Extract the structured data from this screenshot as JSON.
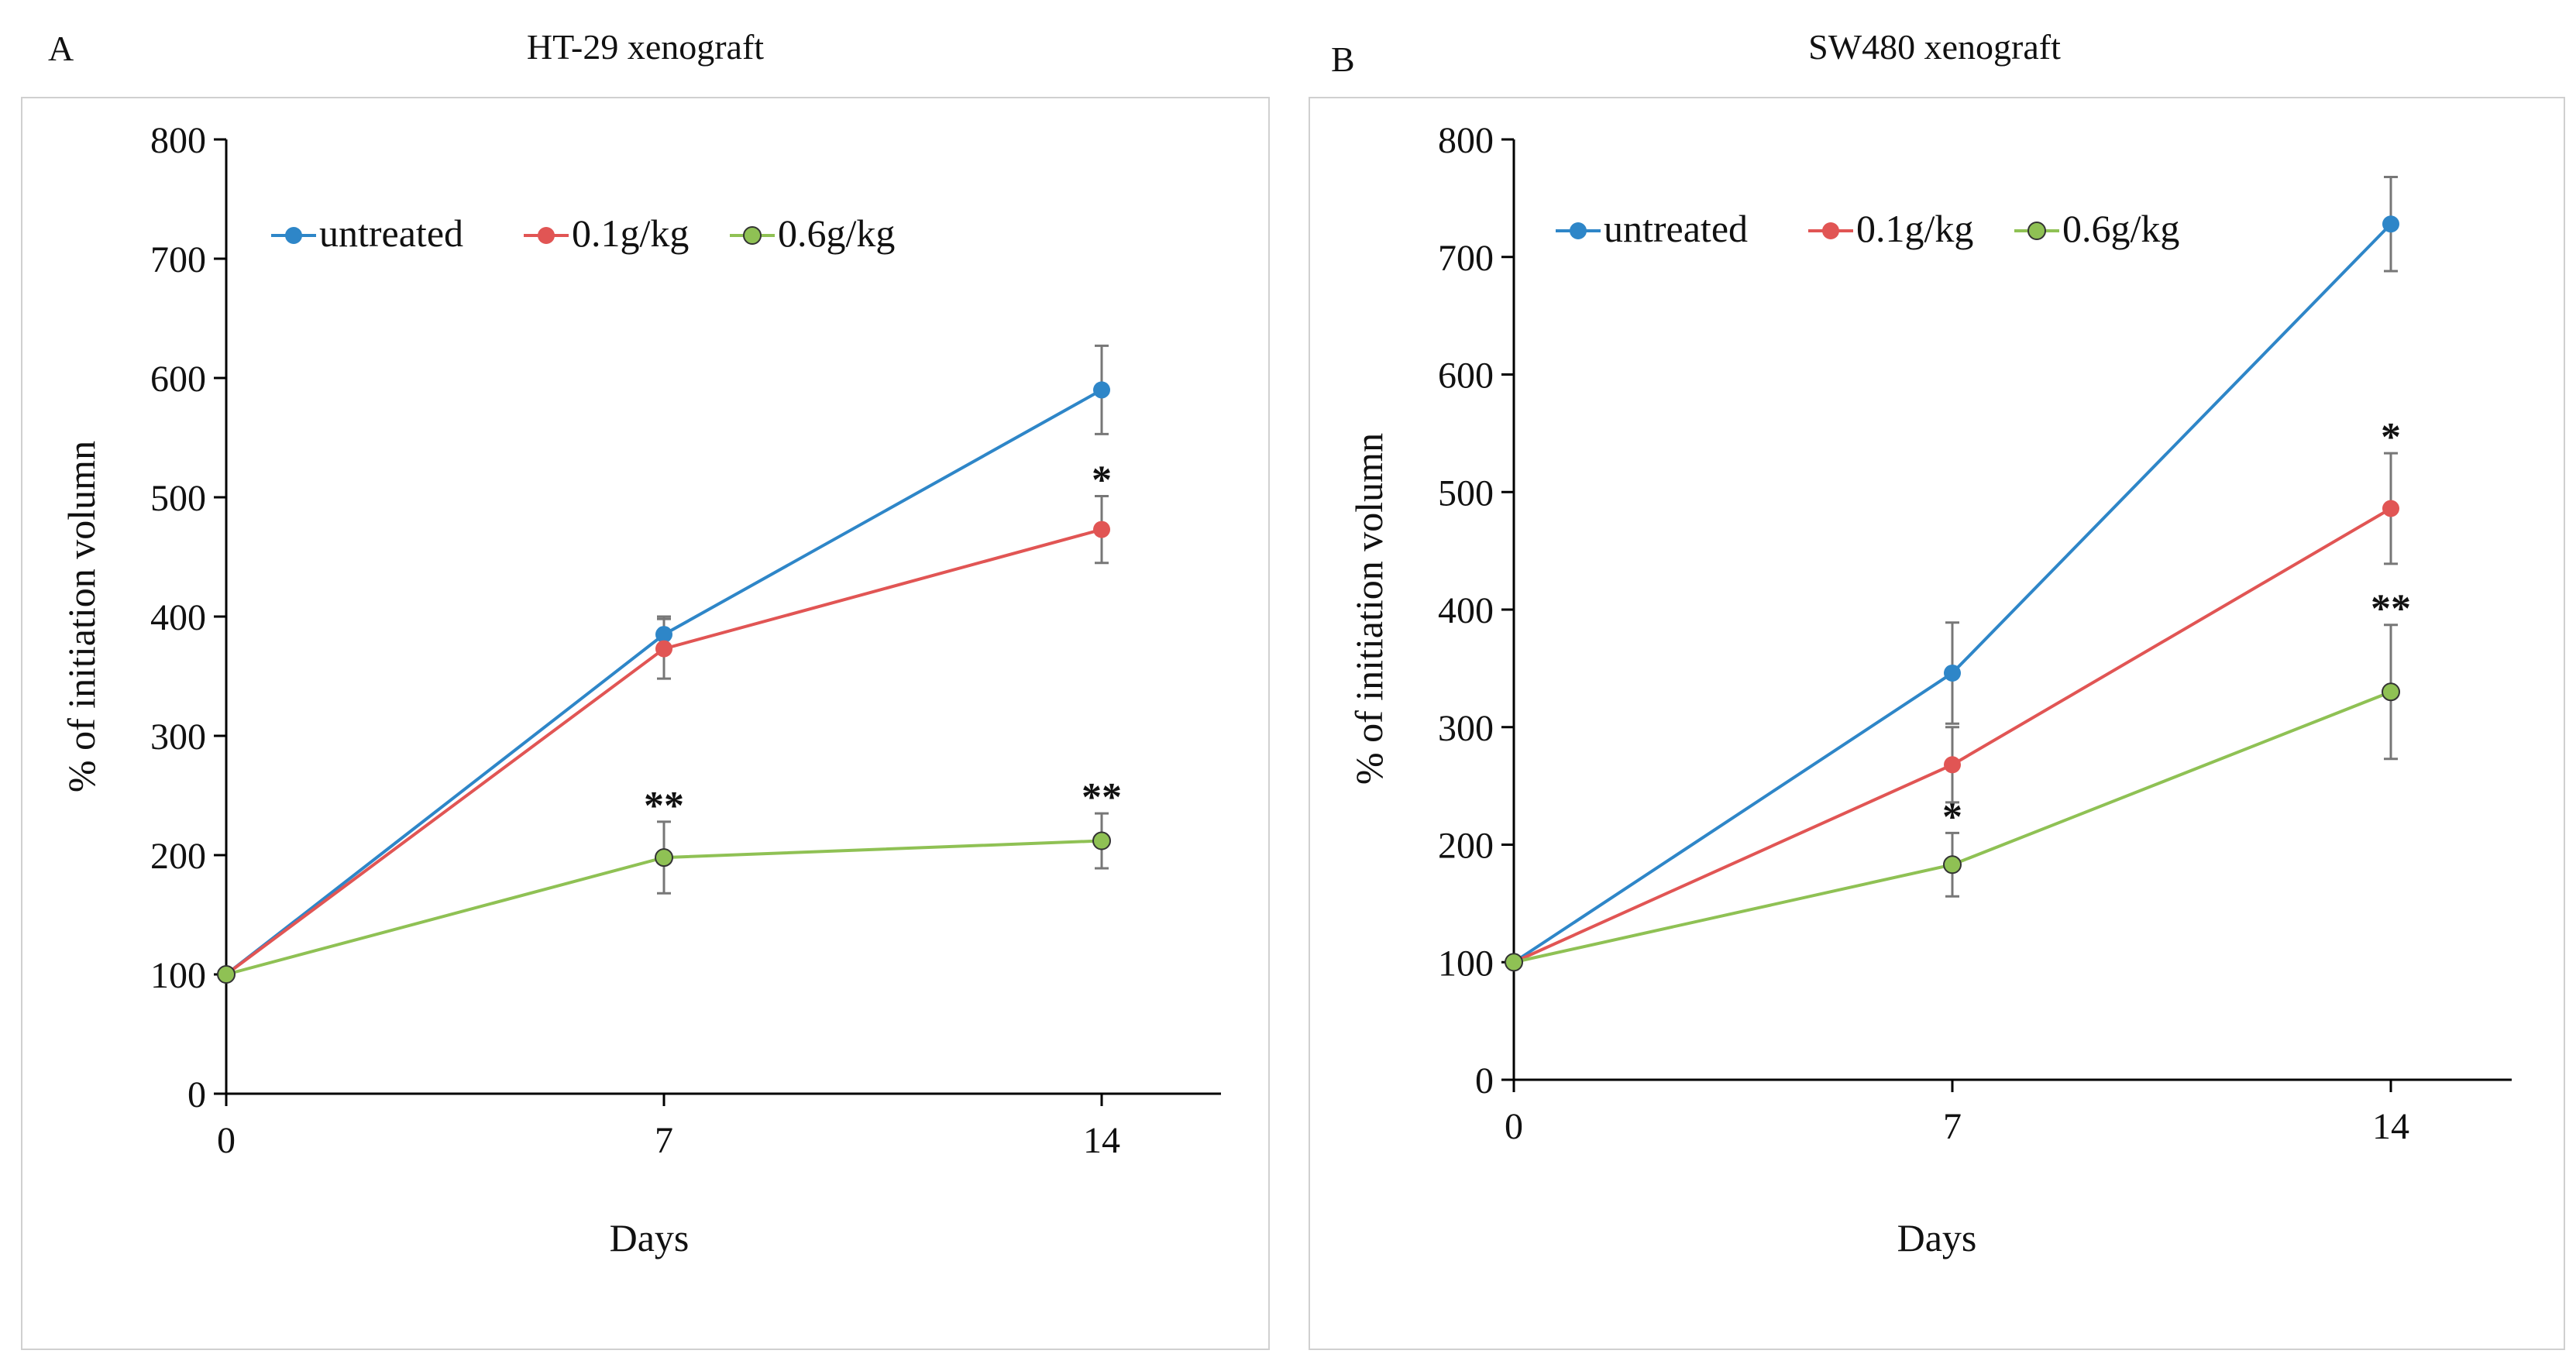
{
  "chart_data": [
    {
      "panel_label": "A",
      "title": "HT-29 xenograft",
      "type": "line",
      "xlabel": "Days",
      "ylabel": "% of initiation volumn",
      "x": [
        0,
        7,
        14
      ],
      "xticks": [
        "0",
        "7",
        "14"
      ],
      "ylim": [
        0,
        800
      ],
      "yticks": [
        "0",
        "100",
        "200",
        "300",
        "400",
        "500",
        "600",
        "700",
        "800"
      ],
      "legend": {
        "placement": "top-left",
        "entries": [
          "untreated",
          "0.1g/kg",
          "0.6g/kg"
        ]
      },
      "series": [
        {
          "name": "untreated",
          "color": "#2e86c8",
          "marker_fill": "#2e86c8",
          "values": [
            100,
            385,
            590
          ],
          "errors": [
            0,
            15,
            37
          ],
          "stars": [
            "",
            "",
            ""
          ]
        },
        {
          "name": "0.1g/kg",
          "color": "#e15554",
          "marker_fill": "#e15554",
          "values": [
            100,
            373,
            473
          ],
          "errors": [
            0,
            25,
            28
          ],
          "stars": [
            "",
            "",
            "*"
          ]
        },
        {
          "name": "0.6g/kg",
          "color": "#8fc154",
          "marker_fill": "#8fc154",
          "values": [
            100,
            198,
            212
          ],
          "errors": [
            0,
            30,
            23
          ],
          "stars": [
            "",
            "**",
            "**"
          ]
        }
      ]
    },
    {
      "panel_label": "B",
      "title": "SW480 xenograft",
      "type": "line",
      "xlabel": "Days",
      "ylabel": "% of initiation volumn",
      "x": [
        0,
        7,
        14
      ],
      "xticks": [
        "0",
        "7",
        "14"
      ],
      "ylim": [
        0,
        800
      ],
      "yticks": [
        "0",
        "100",
        "200",
        "300",
        "400",
        "500",
        "600",
        "700",
        "800"
      ],
      "legend": {
        "placement": "top-left",
        "entries": [
          "untreated",
          "0.1g/kg",
          "0.6g/kg"
        ]
      },
      "series": [
        {
          "name": "untreated",
          "color": "#2e86c8",
          "marker_fill": "#2e86c8",
          "values": [
            100,
            346,
            728
          ],
          "errors": [
            0,
            43,
            40
          ],
          "stars": [
            "",
            "",
            ""
          ]
        },
        {
          "name": "0.1g/kg",
          "color": "#e15554",
          "marker_fill": "#e15554",
          "values": [
            100,
            268,
            486
          ],
          "errors": [
            0,
            32,
            47
          ],
          "stars": [
            "",
            "",
            "*"
          ]
        },
        {
          "name": "0.6g/kg",
          "color": "#8fc154",
          "marker_fill": "#8fc154",
          "values": [
            100,
            183,
            330
          ],
          "errors": [
            0,
            27,
            57
          ],
          "stars": [
            "",
            "*",
            "**"
          ]
        }
      ]
    }
  ]
}
